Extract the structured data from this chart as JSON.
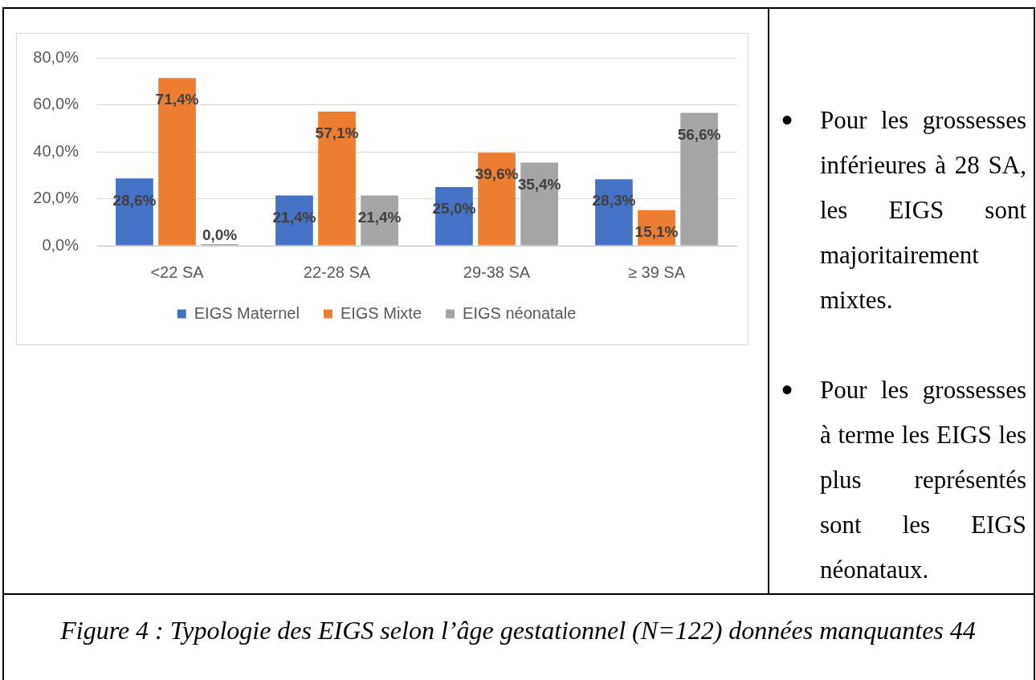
{
  "chart_data": {
    "type": "bar",
    "categories": [
      "<22 SA",
      "22-28 SA",
      "29-38 SA",
      "≥ 39 SA"
    ],
    "series": [
      {
        "name": "EIGS Maternel",
        "color": "#4472c4",
        "values": [
          28.6,
          21.4,
          25.0,
          28.3
        ],
        "value_labels": [
          "28,6%",
          "21,4%",
          "25,0%",
          "28,3%"
        ]
      },
      {
        "name": "EIGS Mixte",
        "color": "#ed7d31",
        "values": [
          71.4,
          57.1,
          39.6,
          15.1
        ],
        "value_labels": [
          "71,4%",
          "57,1%",
          "39,6%",
          "15,1%"
        ]
      },
      {
        "name": "EIGS néonatale",
        "color": "#a5a5a5",
        "values": [
          0.0,
          21.4,
          35.4,
          56.6
        ],
        "value_labels": [
          "0,0%",
          "21,4%",
          "35,4%",
          "56,6%"
        ]
      }
    ],
    "ylim": [
      0,
      80
    ],
    "yticks": [
      {
        "value": 0,
        "label": "0,0%"
      },
      {
        "value": 20,
        "label": "20,0%"
      },
      {
        "value": 40,
        "label": "40,0%"
      },
      {
        "value": 60,
        "label": "60,0%"
      },
      {
        "value": 80,
        "label": "80,0%"
      }
    ],
    "grid": "y",
    "legend": "bottom",
    "annotations": [
      "• Pour les grossesses inférieures à 28 SA, les EIGS sont majoritairement mixtes.",
      "• Pour les grossesses à terme les EIGS les plus représentés sont les EIGS néonataux.",
      "Figure 4 : Typologie des EIGS selon l’âge gestationnel (N=122) données manquantes 44"
    ]
  }
}
